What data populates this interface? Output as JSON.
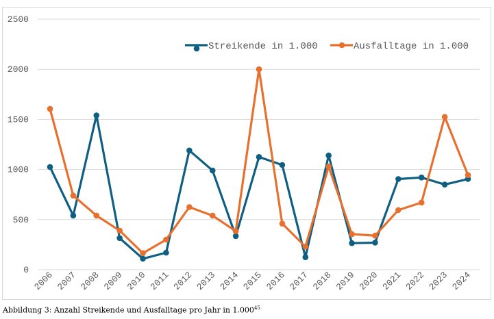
{
  "chart_data": {
    "type": "line",
    "title": "",
    "xlabel": "",
    "ylabel": "",
    "ylim": [
      0,
      2500
    ],
    "yticks": [
      "0",
      "500",
      "1000",
      "1500",
      "2000",
      "2500"
    ],
    "grid": true,
    "legend_placement": "top-right",
    "categories": [
      "2006",
      "2007",
      "2008",
      "2009",
      "2010",
      "2011",
      "2012",
      "2013",
      "2014",
      "2015",
      "2016",
      "2017",
      "2018",
      "2019",
      "2020",
      "2021",
      "2022",
      "2023",
      "2024"
    ],
    "series": [
      {
        "name": "Streikende in 1.000",
        "color": "#0f5f82",
        "values": [
          1025,
          540,
          1540,
          315,
          110,
          170,
          1190,
          990,
          335,
          1125,
          1045,
          125,
          1140,
          265,
          270,
          905,
          920,
          850,
          905
        ]
      },
      {
        "name": "Ausfalltage in 1.000",
        "color": "#e8702f",
        "values": [
          1605,
          740,
          540,
          390,
          165,
          300,
          625,
          540,
          385,
          2000,
          460,
          230,
          1030,
          355,
          340,
          595,
          670,
          1525,
          945
        ]
      }
    ]
  },
  "caption": {
    "text": "Abbildung 3: Anzahl Streikende und Ausfalltage pro Jahr in 1.000",
    "footnote": "45"
  }
}
